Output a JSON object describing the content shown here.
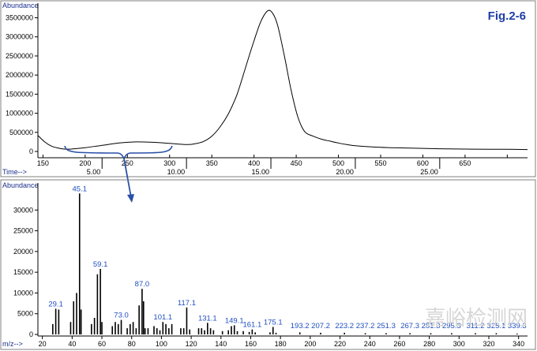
{
  "figure_label": "Fig.2-6",
  "watermark": "嘉峪检测网",
  "colors": {
    "trace": "#000000",
    "axis_label": "#1a2f8a",
    "annotation": "#1f4fbf",
    "figure_label": "#1f3fa8",
    "frame": "#808080",
    "watermark": "#d6d6d6"
  },
  "chart_data": [
    {
      "type": "line",
      "ylabel": "Abundance",
      "xlabel": "Time-->",
      "ylim": [
        0,
        3800000
      ],
      "xlim": [
        1.2,
        30.2
      ],
      "y_ticks": [
        0,
        500000,
        1000000,
        1500000,
        2000000,
        2500000,
        3000000,
        3500000
      ],
      "y_tick_labels": [
        "0",
        "500000",
        "1000000",
        "1500000",
        "2000000",
        "2500000",
        "3000000",
        "3500000"
      ],
      "time_ticks": [
        5,
        10,
        15,
        20,
        25
      ],
      "time_tick_labels": [
        "5.00",
        "10.00",
        "15.00",
        "20.00",
        "25.00"
      ],
      "temperature_ticks": [
        1.5,
        4,
        6.5,
        9,
        11.5,
        14,
        16.5,
        19,
        21.5,
        24,
        26.5,
        29
      ],
      "temperature_tick_labels": [
        "150",
        "200",
        "250",
        "300",
        "350",
        "400",
        "450",
        "500",
        "550",
        "600",
        "650",
        ""
      ],
      "series": [
        {
          "x": [
            1.2,
            1.6,
            2.0,
            2.5,
            3.0,
            4.0,
            5.0,
            6.0,
            7.0,
            8.0,
            9.0,
            10.0,
            10.5,
            11.0,
            11.5,
            12.0,
            12.5,
            13.0,
            13.5,
            14.0,
            14.4,
            14.8,
            15.1,
            15.4,
            15.8,
            16.2,
            16.6,
            17.0,
            17.5,
            18.0,
            18.5,
            19.0,
            19.5,
            20.0,
            21.0,
            22.0,
            23.0,
            24.0,
            25.0,
            26.0,
            27.0,
            28.0,
            29.0,
            30.2
          ],
          "y": [
            420000,
            250000,
            140000,
            80000,
            60000,
            100000,
            160000,
            220000,
            250000,
            240000,
            210000,
            180000,
            200000,
            260000,
            400000,
            650000,
            1000000,
            1500000,
            2200000,
            2900000,
            3400000,
            3680000,
            3620000,
            3300000,
            2500000,
            1600000,
            900000,
            520000,
            400000,
            320000,
            270000,
            220000,
            180000,
            150000,
            120000,
            100000,
            90000,
            80000,
            70000,
            65000,
            60000,
            58000,
            55000,
            50000
          ]
        }
      ],
      "annotations": []
    },
    {
      "type": "bar",
      "ylabel": "Abundance",
      "xlabel": "m/z-->",
      "ylim": [
        0,
        35000
      ],
      "xlim": [
        17,
        346
      ],
      "y_ticks": [
        0,
        5000,
        10000,
        15000,
        20000,
        25000,
        30000
      ],
      "y_tick_labels": [
        "0",
        "5000",
        "10000",
        "15000",
        "20000",
        "25000",
        "30000"
      ],
      "x_ticks": [
        20,
        40,
        60,
        80,
        100,
        120,
        140,
        160,
        180,
        200,
        220,
        240,
        260,
        280,
        300,
        320,
        340
      ],
      "x_tick_labels": [
        "20",
        "40",
        "60",
        "80",
        "100",
        "120",
        "140",
        "160",
        "180",
        "200",
        "220",
        "240",
        "260",
        "280",
        "300",
        "320",
        "340"
      ],
      "x": [
        27,
        29,
        31,
        39,
        41,
        43,
        45,
        46,
        53,
        55,
        57,
        59,
        60,
        67,
        69,
        71,
        73,
        77,
        79,
        81,
        83,
        85,
        87,
        88,
        89,
        91,
        95,
        97,
        99,
        101,
        103,
        105,
        107,
        113,
        115,
        117,
        119,
        125,
        127,
        129,
        131,
        133,
        135,
        141,
        145,
        147,
        149,
        151,
        155,
        159,
        161,
        163,
        173,
        175,
        177,
        193,
        207,
        223,
        237,
        251,
        267,
        281,
        295,
        311,
        325,
        339
      ],
      "y": [
        2500,
        6200,
        6000,
        3000,
        8000,
        10000,
        34000,
        6000,
        2500,
        4000,
        14500,
        15800,
        3000,
        2000,
        3000,
        2500,
        3500,
        1500,
        2500,
        3000,
        1500,
        7000,
        11000,
        8000,
        1500,
        1500,
        2000,
        1500,
        1000,
        3000,
        2500,
        1500,
        2500,
        1500,
        1500,
        6500,
        1200,
        1500,
        1500,
        1000,
        2800,
        1500,
        1000,
        800,
        1000,
        2000,
        2200,
        800,
        800,
        600,
        1200,
        500,
        500,
        1800,
        400,
        500,
        400,
        400,
        300,
        300,
        300,
        300,
        300,
        300,
        300,
        200
      ],
      "peak_labels": [
        {
          "mz": 29,
          "label": "29.1",
          "value": 6200
        },
        {
          "mz": 45,
          "label": "45.1",
          "value": 34000
        },
        {
          "mz": 59,
          "label": "59.1",
          "value": 15800
        },
        {
          "mz": 73,
          "label": "73.0",
          "value": 3500
        },
        {
          "mz": 87,
          "label": "87.0",
          "value": 11000
        },
        {
          "mz": 101,
          "label": "101.1",
          "value": 3000
        },
        {
          "mz": 117,
          "label": "117.1",
          "value": 6500
        },
        {
          "mz": 131,
          "label": "131.1",
          "value": 2800
        },
        {
          "mz": 149,
          "label": "149.1",
          "value": 2200
        },
        {
          "mz": 161,
          "label": "161.1",
          "value": 1200
        },
        {
          "mz": 175,
          "label": "175.1",
          "value": 1800
        },
        {
          "mz": 193,
          "label": "193.2",
          "value": 500
        },
        {
          "mz": 207,
          "label": "207.2",
          "value": 400
        },
        {
          "mz": 223,
          "label": "223.2",
          "value": 400
        },
        {
          "mz": 237,
          "label": "237.2",
          "value": 300
        },
        {
          "mz": 251,
          "label": "251.3",
          "value": 300
        },
        {
          "mz": 267,
          "label": "267.3",
          "value": 300
        },
        {
          "mz": 281,
          "label": "281.3",
          "value": 300
        },
        {
          "mz": 295,
          "label": "295.3",
          "value": 300
        },
        {
          "mz": 311,
          "label": "311.2",
          "value": 300
        },
        {
          "mz": 325,
          "label": "325.1",
          "value": 300
        },
        {
          "mz": 339,
          "label": "339.3",
          "value": 200
        }
      ]
    }
  ]
}
